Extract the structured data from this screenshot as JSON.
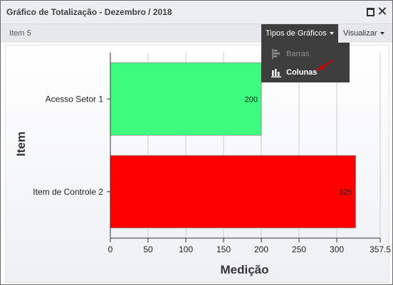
{
  "window": {
    "title": "Gráfico de Totalização - Dezembro / 2018"
  },
  "toolbar": {
    "item_label": "Item 5",
    "chart_types_label": "Tipos de Gráficos",
    "view_label": "Visualizar"
  },
  "menu": {
    "items": [
      {
        "label": "Barras",
        "icon": "horizontal-bars-icon",
        "state": "disabled"
      },
      {
        "label": "Colunas",
        "icon": "column-chart-icon",
        "state": "highlighted"
      }
    ]
  },
  "chart_data": {
    "type": "bar",
    "orientation": "horizontal",
    "categories": [
      "Acesso Setor 1",
      "Item de Controle 2"
    ],
    "values": [
      200,
      325
    ],
    "colors": [
      "#3bfc7c",
      "#ff0000"
    ],
    "xlabel": "Medição",
    "ylabel": "Item",
    "xlim": [
      0,
      357.5
    ],
    "xticks": [
      "0",
      "50",
      "100",
      "150",
      "200",
      "250",
      "300",
      "357.5"
    ],
    "grid": true,
    "data_labels": [
      "200",
      "325"
    ]
  },
  "colors": {
    "menu_bg": "#3e3e3e",
    "annotation_arrow": "#d40000"
  }
}
